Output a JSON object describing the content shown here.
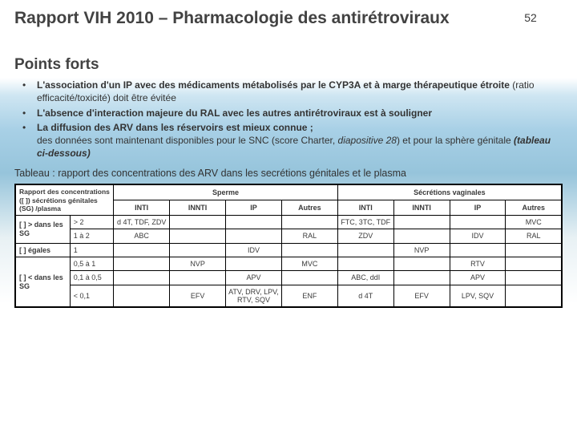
{
  "header": {
    "title": "Rapport VIH 2010 – Pharmacologie des antirétroviraux",
    "page_number": "52"
  },
  "section_heading": "Points forts",
  "bullets": [
    "<strong>L'association d'un IP avec des médicaments métabolisés par le CYP3A et à marge thérapeutique étroite</strong> (ratio efficacité/toxicité) doit être évitée",
    "<strong>L'absence d'interaction majeure du RAL avec les autres antirétroviraux est à souligner</strong>",
    "<strong>La diffusion des ARV dans les réservoirs est mieux connue ;</strong><br>des données sont maintenant disponibles pour le SNC (score Charter, <em>diapositive 28</em>) et pour la sphère génitale <em><strong>(tableau ci-dessous)</strong></em>"
  ],
  "table_caption": "Tableau : rapport des concentrations des ARV dans les secrétions génitales et le plasma",
  "table": {
    "corner_label": "Rapport des concentrations ([ ]) sécrétions génitales (SG) /plasma",
    "group_headers": [
      "Sperme",
      "Sécrétions vaginales"
    ],
    "sub_headers": [
      "INTI",
      "INNTI",
      "IP",
      "Autres",
      "INTI",
      "INNTI",
      "IP",
      "Autres"
    ],
    "row_groups": [
      {
        "label": "[ ] > dans les SG",
        "span": 2
      },
      {
        "label": "[ ] égales",
        "span": 1
      },
      {
        "label": "[ ] < dans les SG",
        "span": 3
      }
    ],
    "rows": [
      {
        "ratio": "> 2",
        "cells": [
          "d 4T, TDF, ZDV",
          "",
          "",
          "",
          "FTC, 3TC, TDF",
          "",
          "",
          "MVC"
        ]
      },
      {
        "ratio": "1 à 2",
        "cells": [
          "ABC",
          "",
          "",
          "RAL",
          "ZDV",
          "",
          "IDV",
          "RAL"
        ]
      },
      {
        "ratio": "1",
        "cells": [
          "",
          "",
          "IDV",
          "",
          "",
          "NVP",
          "",
          ""
        ]
      },
      {
        "ratio": "0,5 à 1",
        "cells": [
          "",
          "NVP",
          "",
          "MVC",
          "",
          "",
          "RTV",
          ""
        ]
      },
      {
        "ratio": "0,1 à 0,5",
        "cells": [
          "",
          "",
          "APV",
          "",
          "ABC, ddI",
          "",
          "APV",
          ""
        ]
      },
      {
        "ratio": "< 0,1",
        "cells": [
          "",
          "EFV",
          "ATV, DRV, LPV, RTV, SQV",
          "ENF",
          "d 4T",
          "EFV",
          "LPV, SQV",
          ""
        ]
      }
    ]
  },
  "colors": {
    "text": "#3a3a3a",
    "table_border": "#000000",
    "table_bg": "#ffffff"
  }
}
